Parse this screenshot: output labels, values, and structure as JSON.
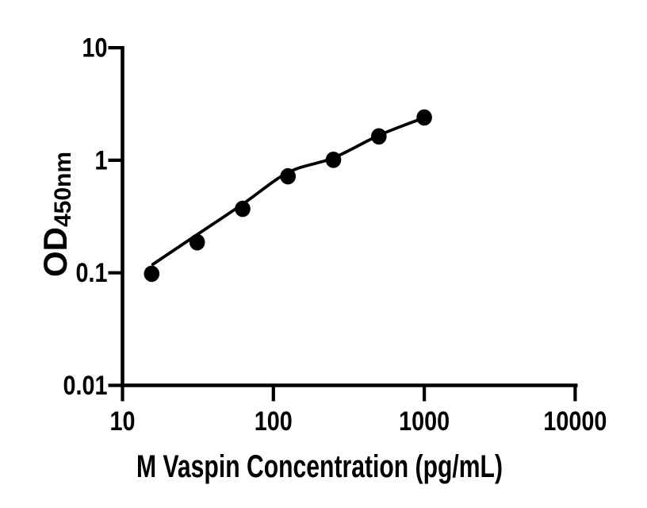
{
  "chart_data": {
    "type": "scatter",
    "title": "",
    "xlabel": "M Vaspin Concentration (pg/mL)",
    "ylabel_main": "OD",
    "ylabel_sub": "450nm",
    "x_scale": "log10",
    "y_scale": "log10",
    "xlim": [
      10,
      10000
    ],
    "ylim": [
      0.01,
      10
    ],
    "x_ticks": [
      10,
      100,
      1000,
      10000
    ],
    "x_tick_labels": [
      "10",
      "100",
      "1000",
      "10000"
    ],
    "y_ticks": [
      0.01,
      0.1,
      1,
      10
    ],
    "y_tick_labels": [
      "0.01",
      "0.1",
      "1",
      "10"
    ],
    "grid": false,
    "legend": false,
    "series": [
      {
        "name": "fit-curve",
        "type": "line",
        "color": "#000000",
        "points": [
          [
            15.9,
            0.119
          ],
          [
            31.0,
            0.217
          ],
          [
            63.0,
            0.41
          ],
          [
            125.5,
            0.78
          ],
          [
            250,
            1.05
          ],
          [
            508,
            1.68
          ],
          [
            1010,
            2.4
          ]
        ]
      },
      {
        "name": "standard-points",
        "type": "scatter",
        "marker": "filled-circle",
        "color": "#000000",
        "points": [
          [
            15.6,
            0.098
          ],
          [
            31.25,
            0.187
          ],
          [
            62.5,
            0.37
          ],
          [
            125,
            0.72
          ],
          [
            250,
            1.01
          ],
          [
            500,
            1.63
          ],
          [
            1000,
            2.4
          ]
        ]
      }
    ]
  },
  "colors": {
    "foreground": "#000000",
    "background": "#ffffff"
  }
}
